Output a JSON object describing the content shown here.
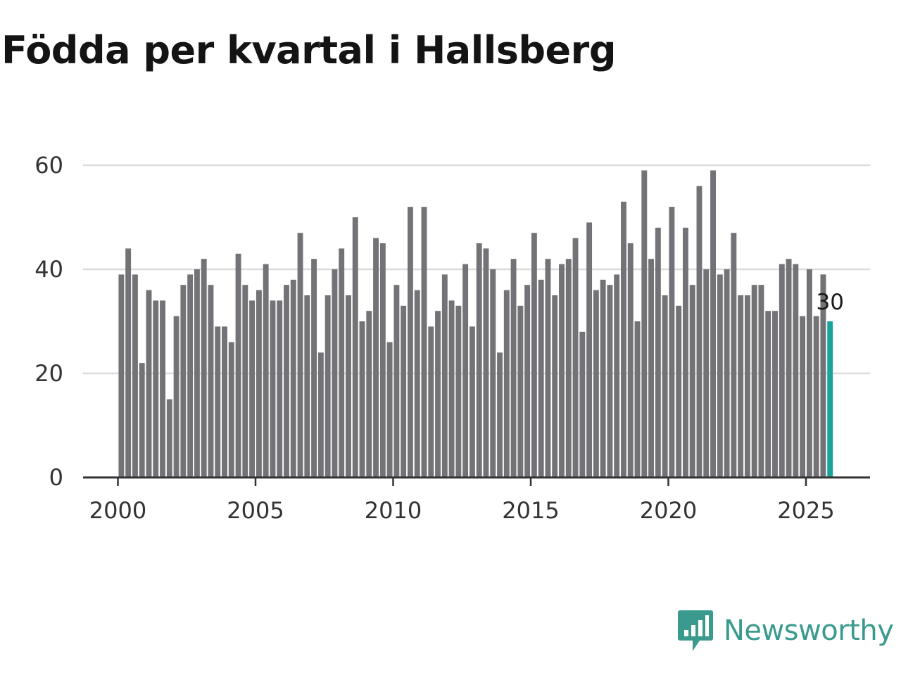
{
  "title": "Födda per kvartal i Hallsberg",
  "brand": {
    "name": "Newsworthy",
    "color": "#3a9a8e"
  },
  "colors": {
    "bar": "#737276",
    "highlight": "#1aa39a",
    "grid": "#dcdcdc",
    "axis": "#333333"
  },
  "chart_data": {
    "type": "bar",
    "title": "Födda per kvartal i Hallsberg",
    "xlabel": "",
    "ylabel": "",
    "ylim": [
      0,
      60
    ],
    "xlim": [
      1997.5,
      2027.0
    ],
    "grid": true,
    "yticks": [
      0,
      20,
      40,
      60
    ],
    "xticks": [
      2000,
      2005,
      2010,
      2015,
      2020,
      2025
    ],
    "start": 2000,
    "periods_per_year": 4,
    "values": [
      39,
      44,
      39,
      22,
      36,
      34,
      34,
      15,
      31,
      37,
      39,
      40,
      42,
      37,
      29,
      29,
      26,
      43,
      37,
      34,
      36,
      41,
      34,
      34,
      37,
      38,
      47,
      35,
      42,
      24,
      35,
      40,
      44,
      35,
      50,
      30,
      32,
      46,
      45,
      26,
      37,
      33,
      52,
      36,
      52,
      29,
      32,
      39,
      34,
      33,
      41,
      29,
      45,
      44,
      40,
      24,
      36,
      42,
      33,
      37,
      47,
      38,
      42,
      35,
      41,
      42,
      46,
      28,
      49,
      36,
      38,
      37,
      39,
      53,
      45,
      30,
      59,
      42,
      48,
      35,
      52,
      33,
      48,
      37,
      56,
      40,
      59,
      39,
      40,
      47,
      35,
      35,
      37,
      37,
      32,
      32,
      41,
      42,
      41,
      31,
      40,
      31,
      39,
      30
    ],
    "partial_segments": [
      {
        "index": 102,
        "values": [
          32,
          39
        ]
      }
    ],
    "highlight_index": 103,
    "highlight_label": "30"
  }
}
